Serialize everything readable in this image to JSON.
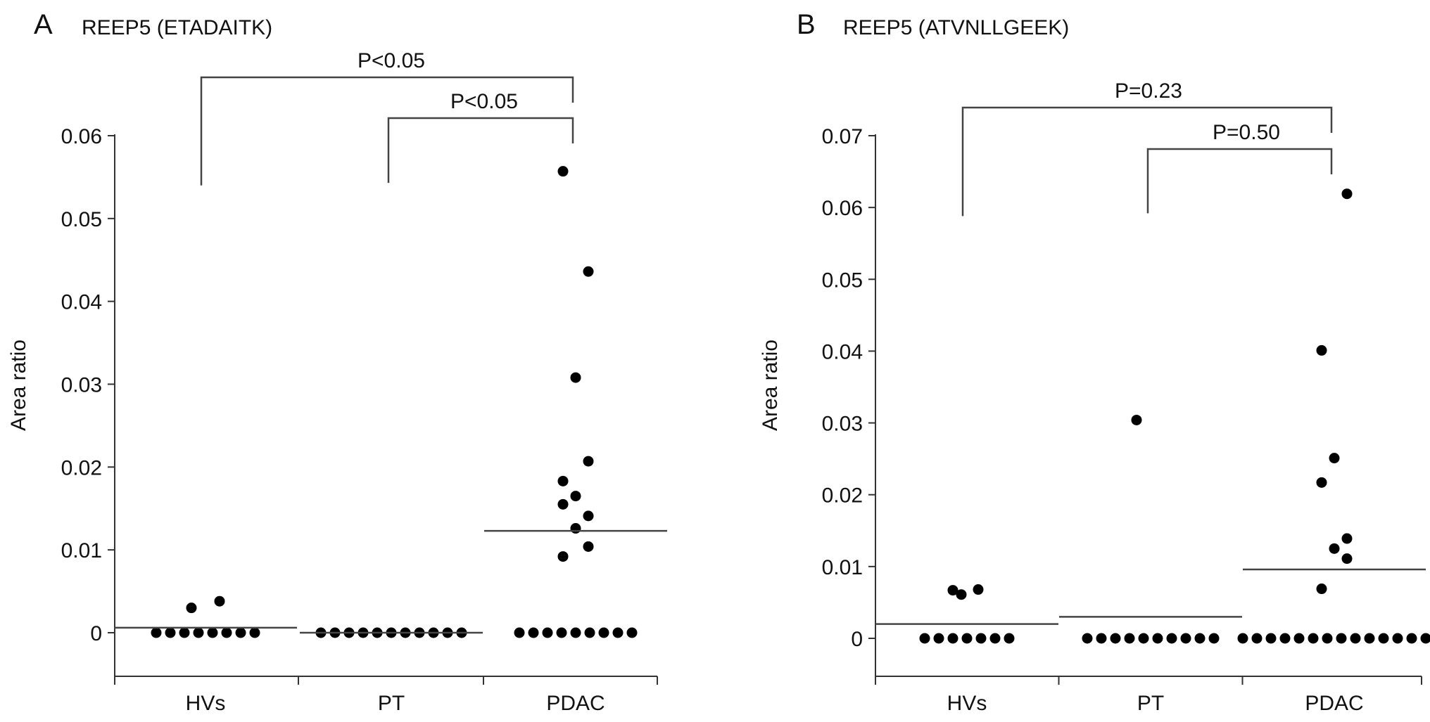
{
  "panels": [
    {
      "letter": "A",
      "title": "REEP5 (ETADAITK)",
      "ylabel": "Area ratio",
      "comparisons": [
        {
          "label": "P<0.05"
        },
        {
          "label": "P<0.05"
        }
      ]
    },
    {
      "letter": "B",
      "title": "REEP5 (ATVNLLGEEK)",
      "ylabel": "Area ratio",
      "comparisons": [
        {
          "label": "P=0.23"
        },
        {
          "label": "P=0.50"
        }
      ]
    }
  ],
  "chart_data": [
    {
      "type": "scatter",
      "title": "REEP5 (ETADAITK)",
      "xlabel": "",
      "ylabel": "Area ratio",
      "categories": [
        "HVs",
        "PT",
        "PDAC"
      ],
      "ylim": [
        -0.005,
        0.06
      ],
      "yticks": [
        "0",
        "0.01",
        "0.02",
        "0.03",
        "0.04",
        "0.05",
        "0.06"
      ],
      "grid": false,
      "groups": [
        {
          "category": "HVs",
          "values": [
            0,
            0,
            0,
            0,
            0,
            0,
            0,
            0,
            0.003,
            0.0038
          ],
          "summary_line": 0.0006
        },
        {
          "category": "PT",
          "values": [
            0,
            0,
            0,
            0,
            0,
            0,
            0,
            0,
            0,
            0,
            0
          ],
          "summary_line": 0
        },
        {
          "category": "PDAC",
          "values": [
            0,
            0,
            0,
            0,
            0,
            0,
            0,
            0,
            0,
            0.0092,
            0.0104,
            0.0126,
            0.0141,
            0.0155,
            0.0165,
            0.0183,
            0.0207,
            0.0308,
            0.0436,
            0.0557
          ],
          "summary_line": 0.0123
        }
      ],
      "comparisons": [
        {
          "from": "HVs",
          "to": "PDAC",
          "label": "P<0.05"
        },
        {
          "from": "PT",
          "to": "PDAC",
          "label": "P<0.05"
        }
      ]
    },
    {
      "type": "scatter",
      "title": "REEP5 (ATVNLLGEEK)",
      "xlabel": "",
      "ylabel": "Area ratio",
      "categories": [
        "HVs",
        "PT",
        "PDAC"
      ],
      "ylim": [
        -0.005,
        0.07
      ],
      "yticks": [
        "0",
        "0.01",
        "0.02",
        "0.03",
        "0.04",
        "0.05",
        "0.06",
        "0.07"
      ],
      "grid": false,
      "groups": [
        {
          "category": "HVs",
          "values": [
            0,
            0,
            0,
            0,
            0,
            0,
            0,
            0.0067,
            0.0061,
            0.0068
          ],
          "summary_line": 0.002
        },
        {
          "category": "PT",
          "values": [
            0,
            0,
            0,
            0,
            0,
            0,
            0,
            0,
            0,
            0,
            0.0304
          ],
          "summary_line": 0.003
        },
        {
          "category": "PDAC",
          "values": [
            0,
            0,
            0,
            0,
            0,
            0,
            0,
            0,
            0,
            0,
            0,
            0,
            0,
            0,
            0.0069,
            0.0111,
            0.0125,
            0.0139,
            0.0217,
            0.0251,
            0.0401,
            0.0619
          ],
          "summary_line": 0.0096
        }
      ],
      "comparisons": [
        {
          "from": "HVs",
          "to": "PDAC",
          "label": "P=0.23"
        },
        {
          "from": "PT",
          "to": "PDAC",
          "label": "P=0.50"
        }
      ]
    }
  ]
}
